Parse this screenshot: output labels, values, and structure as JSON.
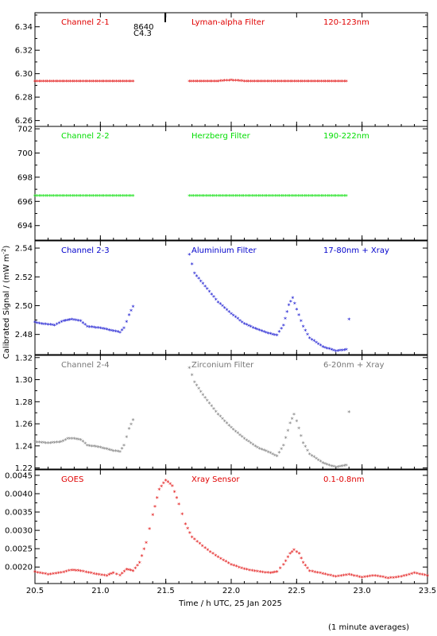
{
  "figure": {
    "xlabel": "Time / h UTC, 25 Jan 2025",
    "ylabel_main": "Calibrated Signal / (mW m",
    "ylabel_sup": "-2",
    "ylabel_end": ")",
    "footnote": "(1 minute averages)",
    "annotation_line1": "8640",
    "annotation_line2": "C4.3"
  },
  "colors": {
    "red": "#e00000",
    "green": "#00dd00",
    "blue": "#0000cc",
    "grey": "#777777",
    "black": "#000000"
  },
  "chart_data": [
    {
      "type": "scatter",
      "labels": [
        "Channel 2-1",
        "Lyman-alpha Filter",
        "120-123nm"
      ],
      "color": "#e00000",
      "xlim": [
        20.5,
        23.5
      ],
      "ylim": [
        6.255,
        6.352
      ],
      "yticks": [
        6.26,
        6.28,
        6.3,
        6.32,
        6.34
      ],
      "ytick_labels": [
        "6.26",
        "6.28",
        "6.30",
        "6.32",
        "6.34"
      ],
      "segments": [
        {
          "x": [
            20.5,
            21.25
          ],
          "y": [
            6.293,
            6.293
          ]
        },
        {
          "x": [
            21.68,
            21.9,
            22.0,
            22.1,
            22.88
          ],
          "y": [
            6.293,
            6.293,
            6.294,
            6.293,
            6.293
          ]
        }
      ]
    },
    {
      "type": "scatter",
      "labels": [
        "Channel 2-2",
        "Herzberg Filter",
        "190-222nm"
      ],
      "color": "#00dd00",
      "xlim": [
        20.5,
        23.5
      ],
      "ylim": [
        692.8,
        702.2
      ],
      "yticks": [
        694,
        696,
        698,
        700,
        702
      ],
      "ytick_labels": [
        "694",
        "696",
        "698",
        "700",
        "702"
      ],
      "segments": [
        {
          "x": [
            20.5,
            21.25
          ],
          "y": [
            696.4,
            696.4
          ]
        },
        {
          "x": [
            21.68,
            22.88
          ],
          "y": [
            696.4,
            696.4
          ]
        }
      ]
    },
    {
      "type": "scatter",
      "labels": [
        "Channel 2-3",
        "Aluminium Filter",
        "17-80nm + Xray"
      ],
      "color": "#0000cc",
      "xlim": [
        20.5,
        23.5
      ],
      "ylim": [
        2.466,
        2.545
      ],
      "yticks": [
        2.48,
        2.5,
        2.52,
        2.54
      ],
      "ytick_labels": [
        "2.48",
        "2.50",
        "2.52",
        "2.54"
      ],
      "segments": [
        {
          "x": [
            20.5,
            20.55,
            20.65,
            20.72,
            20.78,
            20.85,
            20.9,
            21.0,
            21.1,
            21.15,
            21.18,
            21.22,
            21.25
          ],
          "y": [
            2.488,
            2.487,
            2.486,
            2.489,
            2.49,
            2.489,
            2.485,
            2.484,
            2.482,
            2.481,
            2.484,
            2.493,
            2.499
          ]
        },
        {
          "x": [
            21.68,
            21.72,
            21.8,
            21.9,
            22.0,
            22.1,
            22.2,
            22.3,
            22.35,
            22.4,
            22.44,
            22.47,
            22.5,
            22.55,
            22.6,
            22.7,
            22.8,
            22.88,
            22.9
          ],
          "y": [
            2.535,
            2.522,
            2.513,
            2.502,
            2.494,
            2.487,
            2.483,
            2.48,
            2.479,
            2.486,
            2.5,
            2.505,
            2.497,
            2.485,
            2.477,
            2.471,
            2.468,
            2.469,
            2.49
          ]
        }
      ]
    },
    {
      "type": "scatter",
      "labels": [
        "Channel 2-4",
        "Zirconium Filter",
        "6-20nm + Xray"
      ],
      "color": "#777777",
      "xlim": [
        20.5,
        23.5
      ],
      "ylim": [
        1.219,
        1.322
      ],
      "yticks": [
        1.22,
        1.24,
        1.26,
        1.28,
        1.3,
        1.32
      ],
      "ytick_labels": [
        "1.22",
        "1.24",
        "1.26",
        "1.28",
        "1.30",
        "1.32"
      ],
      "segments": [
        {
          "x": [
            20.5,
            20.6,
            20.7,
            20.75,
            20.8,
            20.85,
            20.9,
            21.0,
            21.1,
            21.15,
            21.18,
            21.22,
            21.25
          ],
          "y": [
            1.243,
            1.242,
            1.243,
            1.246,
            1.246,
            1.245,
            1.24,
            1.238,
            1.235,
            1.234,
            1.24,
            1.255,
            1.263
          ]
        },
        {
          "x": [
            21.68,
            21.72,
            21.8,
            21.9,
            22.0,
            22.1,
            22.2,
            22.3,
            22.35,
            22.4,
            22.45,
            22.48,
            22.5,
            22.55,
            22.6,
            22.7,
            22.8,
            22.88,
            22.9
          ],
          "y": [
            1.31,
            1.297,
            1.283,
            1.268,
            1.256,
            1.246,
            1.238,
            1.233,
            1.23,
            1.24,
            1.26,
            1.268,
            1.262,
            1.242,
            1.232,
            1.224,
            1.22,
            1.222,
            1.27
          ]
        }
      ]
    },
    {
      "type": "scatter",
      "labels": [
        "GOES",
        "Xray Sensor",
        "0.1-0.8nm"
      ],
      "color": "#e00000",
      "xlim": [
        20.5,
        23.5
      ],
      "ylim": [
        0.00155,
        0.00465
      ],
      "yticks": [
        0.002,
        0.0025,
        0.003,
        0.0035,
        0.004,
        0.0045
      ],
      "ytick_labels": [
        "0.0020",
        "0.0025",
        "0.0030",
        "0.0035",
        "0.0040",
        "0.0045"
      ],
      "segments": [
        {
          "x": [
            20.5,
            20.6,
            20.7,
            20.78,
            20.85,
            20.95,
            21.05,
            21.1,
            21.15,
            21.2,
            21.25,
            21.3,
            21.35,
            21.4,
            21.45,
            21.5,
            21.55,
            21.6,
            21.65,
            21.7,
            21.8,
            21.9,
            22.0,
            22.1,
            22.2,
            22.3,
            22.35,
            22.4,
            22.45,
            22.48,
            22.52,
            22.55,
            22.6,
            22.7,
            22.8,
            22.9,
            23.0,
            23.1,
            23.2,
            23.3,
            23.4,
            23.5
          ],
          "y": [
            0.00185,
            0.00178,
            0.00183,
            0.0019,
            0.00188,
            0.0018,
            0.00175,
            0.00182,
            0.00176,
            0.00192,
            0.00188,
            0.0021,
            0.00265,
            0.0034,
            0.0041,
            0.00435,
            0.0042,
            0.0037,
            0.00315,
            0.0028,
            0.0025,
            0.00225,
            0.00205,
            0.00193,
            0.00186,
            0.00182,
            0.00185,
            0.00205,
            0.00235,
            0.00245,
            0.00235,
            0.0021,
            0.00188,
            0.0018,
            0.00172,
            0.00178,
            0.0017,
            0.00175,
            0.00168,
            0.00172,
            0.00182,
            0.00175
          ]
        }
      ]
    }
  ],
  "xaxis": {
    "ticks": [
      20.5,
      21.0,
      21.5,
      22.0,
      22.5,
      23.0,
      23.5
    ],
    "tick_labels": [
      "20.5",
      "21.0",
      "21.5",
      "22.0",
      "22.5",
      "23.0",
      "23.5"
    ]
  }
}
